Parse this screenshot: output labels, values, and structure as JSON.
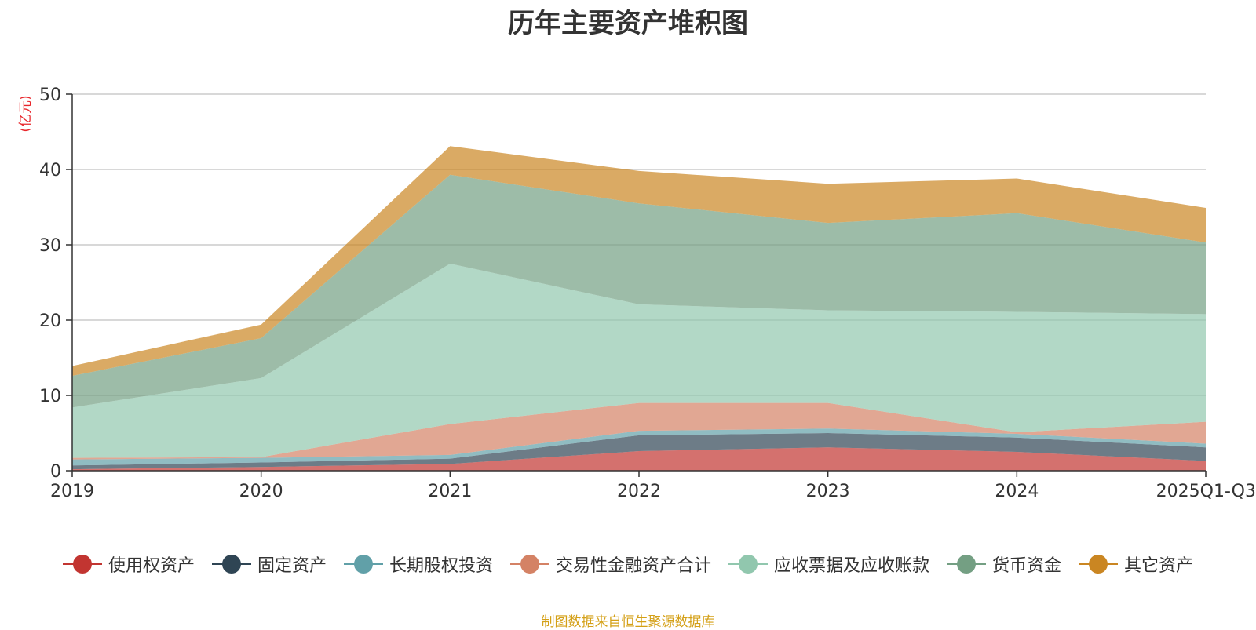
{
  "chart_data": {
    "type": "area",
    "stacked": true,
    "title": "历年主要资产堆积图",
    "ylabel": "(亿元)",
    "xlabel": "",
    "ylim": [
      0,
      50
    ],
    "yticks": [
      0,
      10,
      20,
      30,
      40,
      50
    ],
    "categories": [
      "2019",
      "2020",
      "2021",
      "2022",
      "2023",
      "2024",
      "2025Q1-Q3"
    ],
    "series": [
      {
        "name": "使用权资产",
        "color": "#c23531",
        "values": [
          0.2,
          0.5,
          0.9,
          2.6,
          3.1,
          2.5,
          1.3
        ]
      },
      {
        "name": "固定资产",
        "color": "#2f4554",
        "values": [
          0.5,
          0.6,
          0.7,
          2.1,
          1.9,
          1.9,
          1.8
        ]
      },
      {
        "name": "长期股权投资",
        "color": "#61a0a8",
        "values": [
          0.8,
          0.6,
          0.5,
          0.6,
          0.6,
          0.5,
          0.5
        ]
      },
      {
        "name": "交易性金融资产合计",
        "color": "#d48265",
        "values": [
          0.2,
          0.1,
          4.1,
          3.7,
          3.4,
          0.2,
          2.9
        ]
      },
      {
        "name": "应收票据及应收账款",
        "color": "#91c7ae",
        "values": [
          6.7,
          10.5,
          21.3,
          13.1,
          12.3,
          16.0,
          14.3
        ]
      },
      {
        "name": "货币资金",
        "color": "#749f83",
        "values": [
          4.2,
          5.3,
          11.8,
          13.4,
          11.6,
          13.1,
          9.5
        ]
      },
      {
        "name": "其它资产",
        "color": "#ca8622",
        "values": [
          1.3,
          1.8,
          3.8,
          4.3,
          5.2,
          4.6,
          4.6
        ]
      }
    ],
    "grid": true,
    "legend_position": "bottom"
  },
  "source_note": "制图数据来自恒生聚源数据库"
}
